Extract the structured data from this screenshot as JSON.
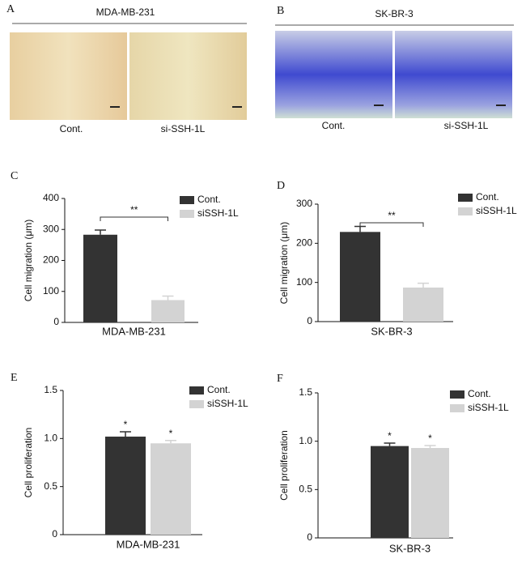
{
  "image_panels": [
    {
      "label": "A",
      "title": "MDA-MB-231",
      "captions": [
        "Cont.",
        "si-SSH-1L"
      ]
    },
    {
      "label": "B",
      "title": "SK-BR-3",
      "captions": [
        "Cont.",
        "si-SSH-1L"
      ]
    }
  ],
  "chart_data": [
    {
      "type": "bar",
      "panel_label": "C",
      "ylabel": "Cell migration (μm)",
      "xlabel": "MDA-MB-231",
      "series": [
        {
          "name": "Cont.",
          "color": "#333333",
          "values": [
            283
          ],
          "errors": [
            15
          ]
        },
        {
          "name": "siSSH-1L",
          "color": "#d3d3d3",
          "values": [
            72
          ],
          "errors": [
            13
          ]
        }
      ],
      "significance": "**",
      "ylim": [
        0,
        400
      ],
      "yticks": [
        0,
        100,
        200,
        300,
        400
      ]
    },
    {
      "type": "bar",
      "panel_label": "D",
      "ylabel": "Cell migration (μm)",
      "xlabel": "SK-BR-3",
      "series": [
        {
          "name": "Cont.",
          "color": "#333333",
          "values": [
            229
          ],
          "errors": [
            14
          ]
        },
        {
          "name": "siSSH-1L",
          "color": "#d3d3d3",
          "values": [
            87
          ],
          "errors": [
            11
          ]
        }
      ],
      "significance": "**",
      "ylim": [
        0,
        300
      ],
      "yticks": [
        0,
        100,
        200,
        300
      ]
    },
    {
      "type": "bar",
      "panel_label": "E",
      "ylabel": "Cell proliferation",
      "xlabel": "MDA-MB-231",
      "series": [
        {
          "name": "Cont.",
          "color": "#333333",
          "values": [
            1.02
          ],
          "errors": [
            0.05
          ],
          "annotation": "*"
        },
        {
          "name": "siSSH-1L",
          "color": "#d3d3d3",
          "values": [
            0.95
          ],
          "errors": [
            0.03
          ],
          "annotation": "*"
        }
      ],
      "ylim": [
        0,
        1.5
      ],
      "yticks": [
        0,
        0.5,
        {
          "value": 1,
          "label": "1.0"
        },
        1.5
      ]
    },
    {
      "type": "bar",
      "panel_label": "F",
      "ylabel": "Cell proliferation",
      "xlabel": "SK-BR-3",
      "series": [
        {
          "name": "Cont.",
          "color": "#333333",
          "values": [
            0.95
          ],
          "errors": [
            0.03
          ],
          "annotation": "*"
        },
        {
          "name": "siSSH-1L",
          "color": "#d3d3d3",
          "values": [
            0.93
          ],
          "errors": [
            0.025
          ],
          "annotation": "*"
        }
      ],
      "ylim": [
        0,
        1.5
      ],
      "yticks": [
        0,
        0.5,
        {
          "value": 1,
          "label": "1.0"
        },
        1.5
      ]
    }
  ]
}
